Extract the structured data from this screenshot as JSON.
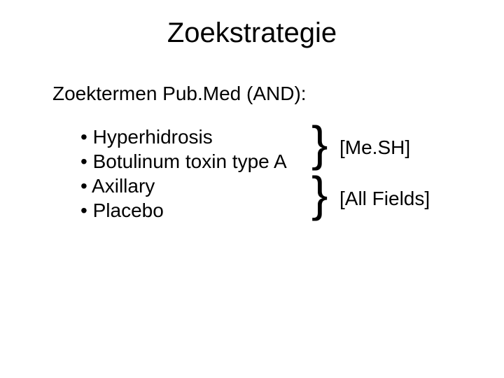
{
  "title": "Zoekstrategie",
  "subtitle": "Zoektermen Pub.Med (AND):",
  "bullets": {
    "0": "Hyperhidrosis",
    "1": "Botulinum toxin type A",
    "2": "Axillary",
    "3": "Placebo"
  },
  "brace": {
    "symbol1": "}",
    "symbol2": "}",
    "label1": "[Me.SH]",
    "label2": "[All Fields]"
  },
  "style": {
    "background_color": "#ffffff",
    "text_color": "#000000",
    "font_family": "Arial",
    "title_fontsize": 40,
    "body_fontsize": 28,
    "brace_fontsize": 70,
    "bullet_marker": "•"
  }
}
